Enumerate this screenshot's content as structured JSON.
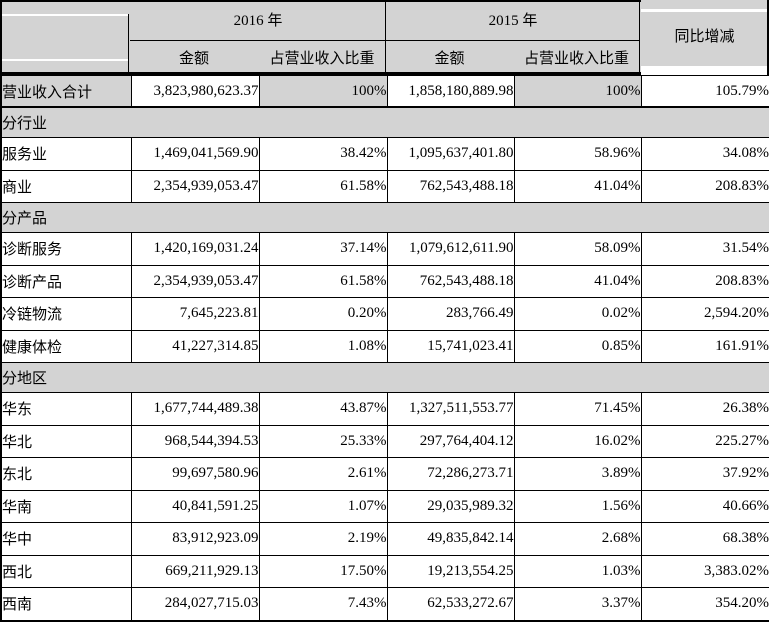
{
  "table": {
    "colors": {
      "header_bg": "#d3d3d3",
      "border": "#000000",
      "cell_bg": "#ffffff"
    },
    "header": {
      "year_2016": "2016 年",
      "year_2015": "2015 年",
      "amount_2016": "金额",
      "ratio_2016": "占营业收入比重",
      "amount_2015": "金额",
      "ratio_2015": "占营业收入比重",
      "yoy": "同比增减"
    },
    "rows": [
      {
        "type": "total",
        "label": "营业收入合计",
        "y2016_amount": "3,823,980,623.37",
        "y2016_ratio": "100%",
        "y2015_amount": "1,858,180,889.98",
        "y2015_ratio": "100%",
        "yoy": "105.79%"
      },
      {
        "type": "section",
        "label": "分行业"
      },
      {
        "type": "data",
        "label": "服务业",
        "y2016_amount": "1,469,041,569.90",
        "y2016_ratio": "38.42%",
        "y2015_amount": "1,095,637,401.80",
        "y2015_ratio": "58.96%",
        "yoy": "34.08%"
      },
      {
        "type": "data",
        "label": "商业",
        "y2016_amount": "2,354,939,053.47",
        "y2016_ratio": "61.58%",
        "y2015_amount": "762,543,488.18",
        "y2015_ratio": "41.04%",
        "yoy": "208.83%"
      },
      {
        "type": "section",
        "label": "分产品"
      },
      {
        "type": "data",
        "label": "诊断服务",
        "y2016_amount": "1,420,169,031.24",
        "y2016_ratio": "37.14%",
        "y2015_amount": "1,079,612,611.90",
        "y2015_ratio": "58.09%",
        "yoy": "31.54%"
      },
      {
        "type": "data",
        "label": "诊断产品",
        "y2016_amount": "2,354,939,053.47",
        "y2016_ratio": "61.58%",
        "y2015_amount": "762,543,488.18",
        "y2015_ratio": "41.04%",
        "yoy": "208.83%"
      },
      {
        "type": "data",
        "label": "冷链物流",
        "y2016_amount": "7,645,223.81",
        "y2016_ratio": "0.20%",
        "y2015_amount": "283,766.49",
        "y2015_ratio": "0.02%",
        "yoy": "2,594.20%"
      },
      {
        "type": "data",
        "label": "健康体检",
        "y2016_amount": "41,227,314.85",
        "y2016_ratio": "1.08%",
        "y2015_amount": "15,741,023.41",
        "y2015_ratio": "0.85%",
        "yoy": "161.91%"
      },
      {
        "type": "section",
        "label": "分地区"
      },
      {
        "type": "data",
        "label": "华东",
        "y2016_amount": "1,677,744,489.38",
        "y2016_ratio": "43.87%",
        "y2015_amount": "1,327,511,553.77",
        "y2015_ratio": "71.45%",
        "yoy": "26.38%"
      },
      {
        "type": "data",
        "label": "华北",
        "y2016_amount": "968,544,394.53",
        "y2016_ratio": "25.33%",
        "y2015_amount": "297,764,404.12",
        "y2015_ratio": "16.02%",
        "yoy": "225.27%"
      },
      {
        "type": "data",
        "label": "东北",
        "y2016_amount": "99,697,580.96",
        "y2016_ratio": "2.61%",
        "y2015_amount": "72,286,273.71",
        "y2015_ratio": "3.89%",
        "yoy": "37.92%"
      },
      {
        "type": "data",
        "label": "华南",
        "y2016_amount": "40,841,591.25",
        "y2016_ratio": "1.07%",
        "y2015_amount": "29,035,989.32",
        "y2015_ratio": "1.56%",
        "yoy": "40.66%"
      },
      {
        "type": "data",
        "label": "华中",
        "y2016_amount": "83,912,923.09",
        "y2016_ratio": "2.19%",
        "y2015_amount": "49,835,842.14",
        "y2015_ratio": "2.68%",
        "yoy": "68.38%"
      },
      {
        "type": "data",
        "label": "西北",
        "y2016_amount": "669,211,929.13",
        "y2016_ratio": "17.50%",
        "y2015_amount": "19,213,554.25",
        "y2015_ratio": "1.03%",
        "yoy": "3,383.02%"
      },
      {
        "type": "data",
        "label": "西南",
        "y2016_amount": "284,027,715.03",
        "y2016_ratio": "7.43%",
        "y2015_amount": "62,533,272.67",
        "y2015_ratio": "3.37%",
        "yoy": "354.20%"
      }
    ]
  }
}
